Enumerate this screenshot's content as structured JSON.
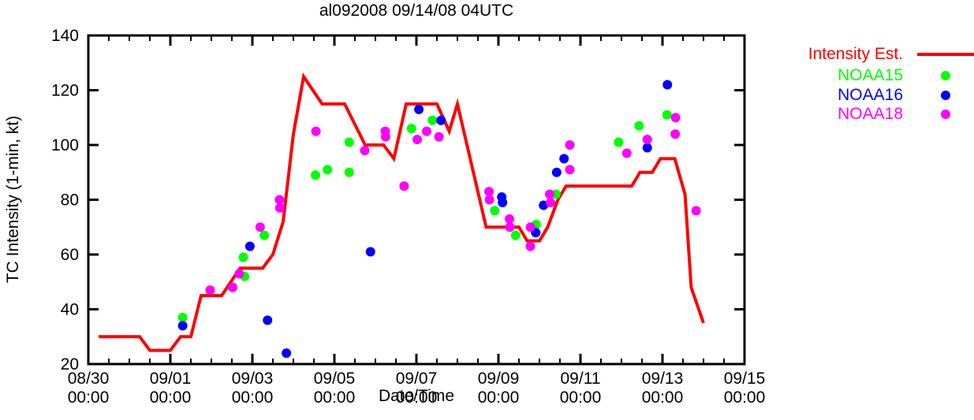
{
  "chart_data": {
    "type": "line+scatter",
    "title": "al092008 09/14/08 04UTC",
    "xlabel": "Date/Time",
    "ylabel": "TC Intensity (1-min, kt)",
    "x_axis": {
      "unit": "days since 08/30 00:00 UTC",
      "min": 0,
      "max": 16,
      "minor_tick_interval_days": 0.5,
      "major_ticks": [
        {
          "t": 0,
          "date": "08/30",
          "time": "00:00"
        },
        {
          "t": 2,
          "date": "09/01",
          "time": "00:00"
        },
        {
          "t": 4,
          "date": "09/03",
          "time": "00:00"
        },
        {
          "t": 6,
          "date": "09/05",
          "time": "00:00"
        },
        {
          "t": 8,
          "date": "09/07",
          "time": "00:00"
        },
        {
          "t": 10,
          "date": "09/09",
          "time": "00:00"
        },
        {
          "t": 12,
          "date": "09/11",
          "time": "00:00"
        },
        {
          "t": 14,
          "date": "09/13",
          "time": "00:00"
        },
        {
          "t": 16,
          "date": "09/15",
          "time": "00:00"
        }
      ]
    },
    "y_axis": {
      "min": 20,
      "max": 140,
      "ticks": [
        20,
        40,
        60,
        80,
        100,
        120,
        140
      ]
    },
    "grid": "off",
    "legend_position": "outside-top-right",
    "series": [
      {
        "name": "Intensity Est.",
        "kind": "line",
        "color": "#ff0000",
        "points": [
          [
            0.25,
            30
          ],
          [
            1.25,
            30
          ],
          [
            1.5,
            25
          ],
          [
            2.0,
            25
          ],
          [
            2.25,
            30
          ],
          [
            2.5,
            30
          ],
          [
            2.75,
            45
          ],
          [
            3.25,
            45
          ],
          [
            3.7,
            55
          ],
          [
            4.25,
            55
          ],
          [
            4.5,
            60
          ],
          [
            4.75,
            72
          ],
          [
            5.0,
            104
          ],
          [
            5.25,
            125
          ],
          [
            5.7,
            115
          ],
          [
            6.25,
            115
          ],
          [
            6.75,
            100
          ],
          [
            7.2,
            100
          ],
          [
            7.45,
            95
          ],
          [
            7.75,
            115
          ],
          [
            8.5,
            115
          ],
          [
            8.8,
            105
          ],
          [
            9.0,
            115
          ],
          [
            9.7,
            70
          ],
          [
            10.5,
            70
          ],
          [
            10.7,
            65
          ],
          [
            11.0,
            65
          ],
          [
            11.2,
            70
          ],
          [
            11.45,
            80
          ],
          [
            11.65,
            85
          ],
          [
            13.25,
            85
          ],
          [
            13.45,
            90
          ],
          [
            13.75,
            90
          ],
          [
            13.95,
            95
          ],
          [
            14.3,
            95
          ],
          [
            14.55,
            82
          ],
          [
            14.7,
            48
          ],
          [
            15.0,
            35
          ]
        ]
      },
      {
        "name": "NOAA15",
        "kind": "scatter",
        "color": "#00ff00",
        "points": [
          [
            2.3,
            37
          ],
          [
            3.78,
            59
          ],
          [
            3.81,
            52
          ],
          [
            4.29,
            67
          ],
          [
            5.54,
            89
          ],
          [
            5.83,
            91
          ],
          [
            6.36,
            101
          ],
          [
            6.36,
            90
          ],
          [
            7.88,
            106
          ],
          [
            8.39,
            109
          ],
          [
            9.91,
            76
          ],
          [
            10.42,
            67
          ],
          [
            10.92,
            71
          ],
          [
            11.4,
            82
          ],
          [
            12.93,
            101
          ],
          [
            13.43,
            107
          ],
          [
            14.11,
            111
          ]
        ]
      },
      {
        "name": "NOAA16",
        "kind": "scatter",
        "color": "#0000ff",
        "points": [
          [
            2.3,
            34
          ],
          [
            3.94,
            63
          ],
          [
            4.37,
            36
          ],
          [
            4.83,
            24
          ],
          [
            6.88,
            61
          ],
          [
            8.06,
            113
          ],
          [
            8.6,
            109
          ],
          [
            10.08,
            81
          ],
          [
            10.1,
            79
          ],
          [
            10.91,
            68
          ],
          [
            11.1,
            78
          ],
          [
            11.42,
            90
          ],
          [
            11.6,
            95
          ],
          [
            13.63,
            99
          ],
          [
            14.12,
            122
          ]
        ]
      },
      {
        "name": "NOAA18",
        "kind": "scatter",
        "color": "#ff00ff",
        "points": [
          [
            2.97,
            47
          ],
          [
            3.52,
            48
          ],
          [
            3.68,
            53
          ],
          [
            4.19,
            70
          ],
          [
            4.66,
            80
          ],
          [
            4.67,
            77
          ],
          [
            5.55,
            105
          ],
          [
            6.74,
            98
          ],
          [
            7.24,
            105
          ],
          [
            7.25,
            103
          ],
          [
            7.7,
            85
          ],
          [
            8.02,
            102
          ],
          [
            8.25,
            105
          ],
          [
            8.55,
            103
          ],
          [
            9.77,
            83
          ],
          [
            9.78,
            80
          ],
          [
            10.27,
            73
          ],
          [
            10.28,
            70
          ],
          [
            10.78,
            70
          ],
          [
            10.78,
            63
          ],
          [
            11.25,
            82
          ],
          [
            11.27,
            79
          ],
          [
            11.74,
            100
          ],
          [
            11.74,
            91
          ],
          [
            13.13,
            97
          ],
          [
            13.63,
            102
          ],
          [
            14.31,
            104
          ],
          [
            14.32,
            110
          ],
          [
            14.82,
            76
          ]
        ]
      }
    ]
  },
  "colors": {
    "background": "#ffffff",
    "axis": "#000000",
    "intensity_line": "#ff0000",
    "noaa15": "#00ff00",
    "noaa16": "#0000ff",
    "noaa18": "#ff00ff"
  }
}
